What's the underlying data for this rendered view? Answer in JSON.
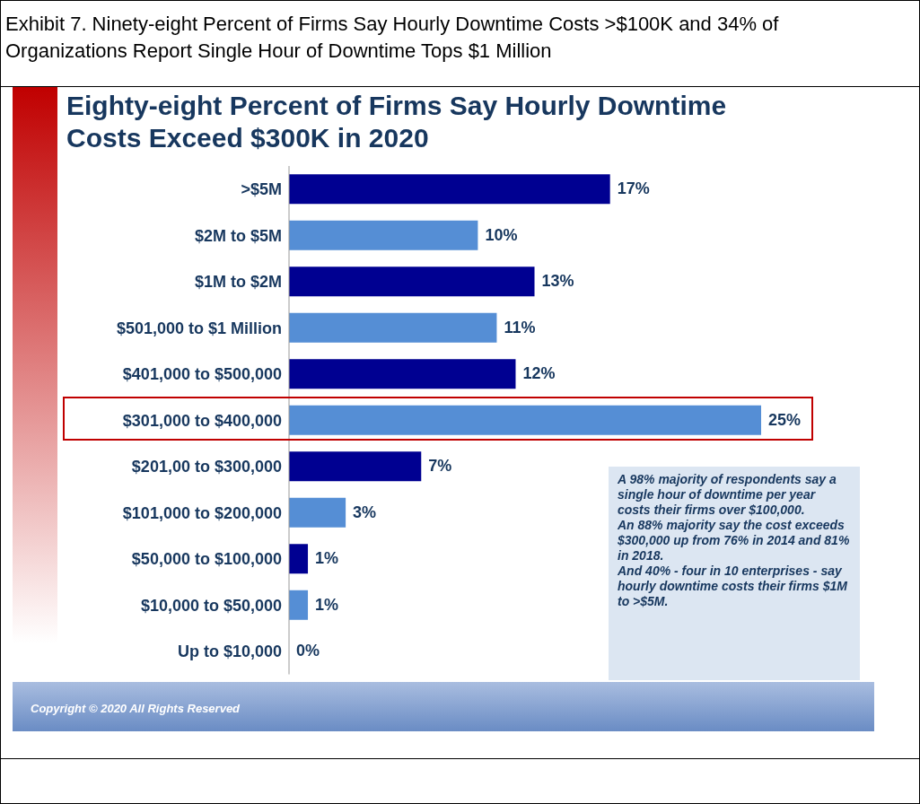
{
  "chart_data": {
    "type": "bar",
    "orientation": "horizontal",
    "title": "Exhibit 7.  Ninety-eight Percent of Firms Say Hourly Downtime Costs >$100K and 34% of Organizations Report Single Hour of Downtime Tops $1 Million",
    "subtitle": "Eighty-eight Percent of Firms Say Hourly Downtime Costs Exceed $300K in 2020",
    "categories": [
      ">$5M",
      "$2M to $5M",
      "$1M to $2M",
      "$501,000 to $1 Million",
      "$401,000 to $500,000",
      "$301,000 to $400,000",
      "$201,00 to $300,000",
      "$101,000 to $200,000",
      "$50,000 to $100,000",
      "$10,000 to $50,000",
      "Up to $10,000"
    ],
    "values": [
      17,
      10,
      13,
      11,
      12,
      25,
      7,
      3,
      1,
      1,
      0
    ],
    "value_labels": [
      "17%",
      "10%",
      "13%",
      "11%",
      "12%",
      "25%",
      "7%",
      "3%",
      "1%",
      "1%",
      "0%"
    ],
    "colors": [
      "#000091",
      "#558ed5",
      "#000091",
      "#558ed5",
      "#000091",
      "#558ed5",
      "#000091",
      "#558ed5",
      "#000091",
      "#558ed5",
      "#000091"
    ],
    "annotations": [
      "A 98% majority of respondents say a single hour of downtime per year costs their firms over $100,000.",
      "An 88% majority say the cost exceeds $300,000  up from 76% in 2014 and 81% in 2018.",
      "And 40%  - four in 10 enterprises - say hourly downtime costs their firms $1M to >$5M.",
      "Copyright © 2020 All Rights Reserved"
    ],
    "data_labels": false
  }
}
